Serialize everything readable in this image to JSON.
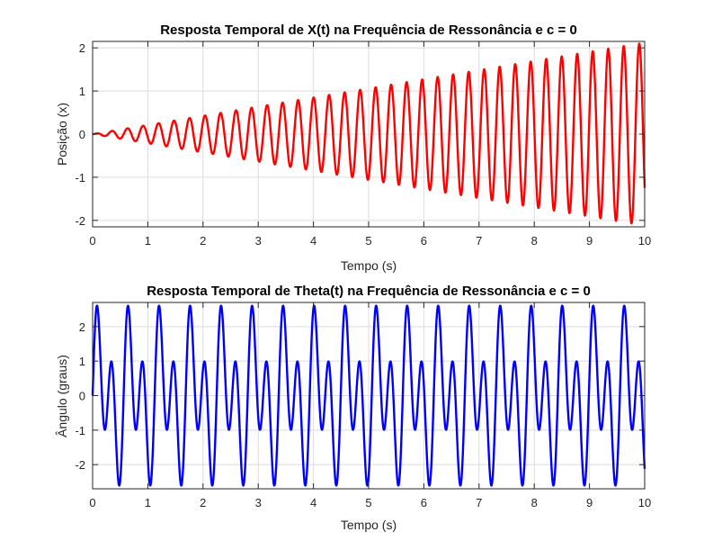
{
  "chart_data": [
    {
      "type": "line",
      "title": "Resposta Temporal de X(t) na Frequência de Ressonância e c = 0",
      "xlabel": "Tempo (s)",
      "ylabel": "Posição (x)",
      "xlim": [
        0,
        10
      ],
      "ylim": [
        -2.15,
        2.15
      ],
      "xticks": [
        0,
        1,
        2,
        3,
        4,
        5,
        6,
        7,
        8,
        9,
        10
      ],
      "xtick_labels": [
        "0",
        "1",
        "2",
        "3",
        "4",
        "5",
        "6",
        "7",
        "8",
        "9",
        "10"
      ],
      "yticks": [
        -2,
        -1,
        0,
        1,
        2
      ],
      "ytick_labels": [
        "-2",
        "-1",
        "0",
        "1",
        "2"
      ],
      "grid": true,
      "color": "#ff0000",
      "series": [
        {
          "description": "resonant oscillation with linearly growing amplitude, frequency ~3.56 Hz",
          "t_end": 10,
          "frequency_hz": 3.56,
          "envelope_slope_per_s": 0.212,
          "values_at_peaks_approx": [
            [
              1.0,
              0.2
            ],
            [
              5.0,
              1.05
            ],
            [
              9.7,
              2.1
            ]
          ]
        }
      ]
    },
    {
      "type": "line",
      "title": "Resposta Temporal de Theta(t) na Frequência de Ressonância e c = 0",
      "xlabel": "Tempo (s)",
      "ylabel": "Ângulo (graus)",
      "xlim": [
        0,
        10
      ],
      "ylim": [
        -2.7,
        2.7
      ],
      "xticks": [
        0,
        1,
        2,
        3,
        4,
        5,
        6,
        7,
        8,
        9,
        10
      ],
      "xtick_labels": [
        "0",
        "1",
        "2",
        "3",
        "4",
        "5",
        "6",
        "7",
        "8",
        "9",
        "10"
      ],
      "yticks": [
        -2,
        -1,
        0,
        1,
        2
      ],
      "ytick_labels": [
        "-2",
        "-1",
        "0",
        "1",
        "2"
      ],
      "grid": true,
      "color": "#0000ff",
      "series": [
        {
          "description": "beating double-frequency oscillation with nearly constant amplitude (~±2.7 deg)",
          "t_end": 10,
          "component_frequencies_hz": [
            3.56,
            1.78
          ],
          "component_amplitudes": [
            1.75,
            1.15
          ]
        }
      ]
    }
  ]
}
